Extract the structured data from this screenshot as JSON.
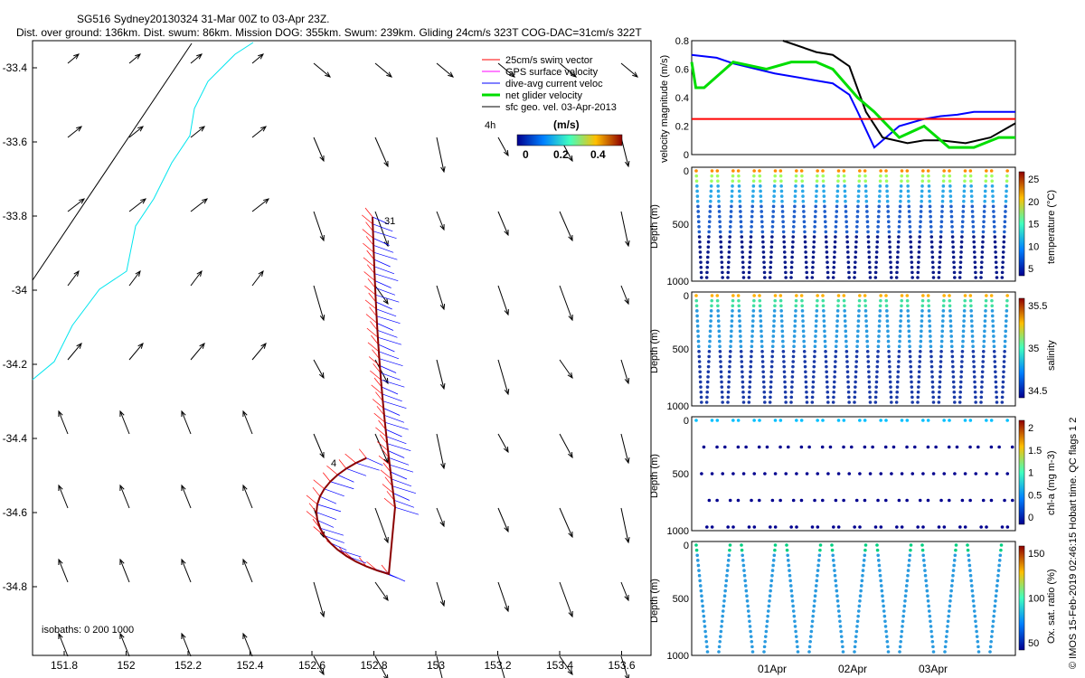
{
  "title": {
    "line1": "SG516 Sydney20130324 31-Mar 00Z to 03-Apr 23Z.",
    "line2": "Dist. over ground: 136km. Dist. swum: 86km. Mission DOG: 355km. Swum: 239km. Gliding 24cm/s 323T COG-DAC=31cm/s 322T"
  },
  "map": {
    "x_ticks": [
      "151.8",
      "152",
      "152.2",
      "152.4",
      "152.6",
      "152.8",
      "153",
      "153.2",
      "153.4",
      "153.6"
    ],
    "y_ticks": [
      "-33.4",
      "-33.6",
      "-33.8",
      "-34",
      "-34.2",
      "-34.4",
      "-34.6",
      "-34.8"
    ],
    "legend": [
      {
        "label": "25cm/s swim vector",
        "color": "#ff0000"
      },
      {
        "label": "GPS surface velocity",
        "color": "#ff00ff"
      },
      {
        "label": "dive-avg current veloc",
        "color": "#0000ff"
      },
      {
        "label": "net glider velocity",
        "color": "#00dd00"
      },
      {
        "label": "sfc geo. vel. 03-Apr-2013",
        "color": "#000000"
      }
    ],
    "legend_note": "4h",
    "colorbar": {
      "title": "(m/s)",
      "ticks": [
        "0",
        "0.2",
        "0.4"
      ]
    },
    "track_labels": [
      "31",
      "4"
    ],
    "isobaths_label": "isobaths: 0   200   1000"
  },
  "panels": {
    "velocity": {
      "ylabel": "velocity magnitude (m/s)",
      "y_ticks": [
        "0",
        "0.2",
        "0.4",
        "0.6",
        "0.8"
      ]
    },
    "temperature": {
      "ylabel": "Depth (m)",
      "y_ticks": [
        "0",
        "500",
        "1000"
      ],
      "cbar_label": "temperature (°C)",
      "cbar_ticks": [
        "25",
        "20",
        "15",
        "10",
        "5"
      ]
    },
    "salinity": {
      "ylabel": "Depth (m)",
      "y_ticks": [
        "0",
        "500",
        "1000"
      ],
      "cbar_label": "salinity",
      "cbar_ticks": [
        "35.5",
        "35",
        "34.5"
      ]
    },
    "chla": {
      "ylabel": "Depth (m)",
      "y_ticks": [
        "0",
        "500",
        "1000"
      ],
      "cbar_label": "chl-a (mg m-3)",
      "cbar_ticks": [
        "2",
        "1.5",
        "1",
        "0.5",
        "0"
      ]
    },
    "oxygen": {
      "ylabel": "Depth (m)",
      "y_ticks": [
        "0",
        "500",
        "1000"
      ],
      "cbar_label": "Ox. sat. ratio (%)",
      "cbar_ticks": [
        "150",
        "100",
        "50"
      ]
    },
    "x_ticks": [
      "01Apr",
      "02Apr",
      "03Apr"
    ]
  },
  "footer": "© IMOS 15-Feb-2019 02:46:15 Hobart time. QC flags 1 2",
  "chart_data": [
    {
      "type": "line",
      "title": "",
      "ylabel": "velocity magnitude (m/s)",
      "ylim": [
        0,
        0.8
      ],
      "x_unit": "days since 31-Mar 00Z",
      "series": [
        {
          "color": "#0000ff",
          "x": [
            0,
            0.3,
            0.5,
            1,
            1.5,
            1.7,
            1.9,
            2.0,
            2.2,
            2.5,
            2.8,
            3.0,
            3.2,
            3.4,
            3.6,
            3.9
          ],
          "y": [
            0.7,
            0.68,
            0.64,
            0.57,
            0.52,
            0.5,
            0.42,
            0.3,
            0.05,
            0.2,
            0.25,
            0.27,
            0.28,
            0.3,
            0.3,
            0.3
          ]
        },
        {
          "color": "#000000",
          "x": [
            1.1,
            1.5,
            1.7,
            1.9,
            2.1,
            2.3,
            2.6,
            2.8,
            3.0,
            3.3,
            3.6,
            3.9
          ],
          "y": [
            0.8,
            0.72,
            0.7,
            0.62,
            0.3,
            0.12,
            0.08,
            0.1,
            0.1,
            0.08,
            0.12,
            0.22
          ]
        },
        {
          "color": "#00dd00",
          "x": [
            0,
            0.05,
            0.15,
            0.5,
            0.9,
            1.2,
            1.5,
            1.7,
            2.0,
            2.2,
            2.5,
            2.8,
            3.1,
            3.4,
            3.7,
            3.9
          ],
          "y": [
            0.65,
            0.47,
            0.47,
            0.65,
            0.6,
            0.65,
            0.65,
            0.6,
            0.4,
            0.3,
            0.12,
            0.2,
            0.05,
            0.05,
            0.12,
            0.12
          ]
        },
        {
          "color": "#ff0000",
          "x": [
            0,
            3.9
          ],
          "y": [
            0.25,
            0.25
          ]
        }
      ]
    }
  ]
}
